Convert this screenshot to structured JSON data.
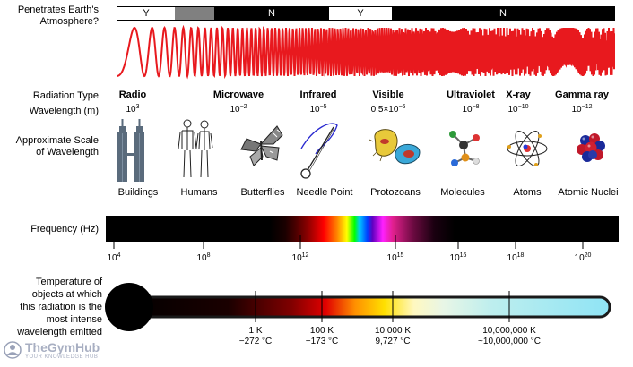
{
  "labels": {
    "penetrates_line1": "Penetrates Earth's",
    "penetrates_line2": "Atmosphere?",
    "radiation_type": "Radiation Type",
    "wavelength": "Wavelength (m)",
    "scale_line1": "Approximate Scale",
    "scale_line2": "of Wavelength",
    "frequency": "Frequency (Hz)",
    "temp_lines": [
      "Temperature of",
      "objects at which",
      "this radiation is the",
      "most intense",
      "wavelength emitted"
    ]
  },
  "atmosphere_bar": [
    {
      "text": "Y",
      "fill": "#ffffff"
    },
    {
      "text": "",
      "fill": "#808080"
    },
    {
      "text": "N",
      "fill": "#000000"
    },
    {
      "text": "",
      "fill": "#808080"
    },
    {
      "text": "Y",
      "fill": "#ffffff"
    },
    {
      "text": "N",
      "fill": "#000000"
    }
  ],
  "radiation_types": [
    {
      "name": "Radio",
      "wl_base": "10",
      "wl_exp": "3"
    },
    {
      "name": "Microwave",
      "wl_base": "10",
      "wl_exp": "−2"
    },
    {
      "name": "Infrared",
      "wl_base": "10",
      "wl_exp": "−5"
    },
    {
      "name": "Visible",
      "wl_base": "0.5×10",
      "wl_exp": "−6"
    },
    {
      "name": "Ultraviolet",
      "wl_base": "10",
      "wl_exp": "−8"
    },
    {
      "name": "X-ray",
      "wl_base": "10",
      "wl_exp": "−10"
    },
    {
      "name": "Gamma ray",
      "wl_base": "10",
      "wl_exp": "−12"
    }
  ],
  "scale_items": [
    "Buildings",
    "Humans",
    "Butterflies",
    "Needle Point",
    "Protozoans",
    "Molecules",
    "Atoms",
    "Atomic Nuclei"
  ],
  "frequency_ticks": [
    {
      "base": "10",
      "exp": "4"
    },
    {
      "base": "10",
      "exp": "8"
    },
    {
      "base": "10",
      "exp": "12"
    },
    {
      "base": "10",
      "exp": "15"
    },
    {
      "base": "10",
      "exp": "16"
    },
    {
      "base": "10",
      "exp": "18"
    },
    {
      "base": "10",
      "exp": "20"
    }
  ],
  "temperatures": [
    {
      "k": "1 K",
      "c": "−272 °C"
    },
    {
      "k": "100 K",
      "c": "−173 °C"
    },
    {
      "k": "10,000 K",
      "c": "9,727 °C"
    },
    {
      "k": "10,000,000 K",
      "c": "~10,000,000 °C"
    }
  ],
  "watermark": {
    "title": "TheGymHub",
    "subtitle": "YOUR KNOWLEDGE HUB"
  },
  "colors": {
    "wave": "#e8191e",
    "thermo_outline": "#1a1a1a",
    "thermo_end": "#8fe4f5"
  }
}
